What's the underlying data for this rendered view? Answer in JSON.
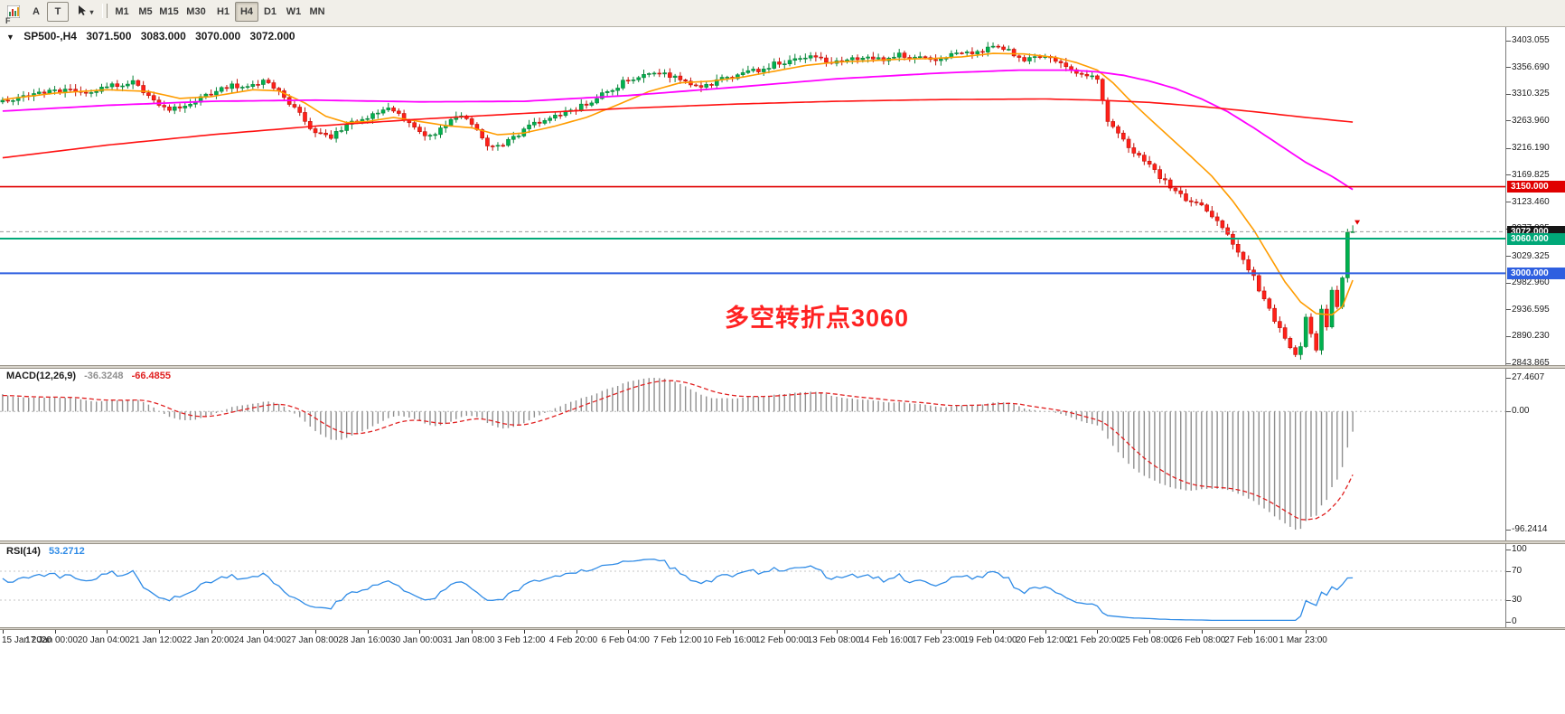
{
  "toolbar": {
    "menu_partial_label": "F",
    "text_tool_label": "A",
    "type_tool_label": "T",
    "dropdown_glyph": "▾",
    "timeframes": [
      "M1",
      "M5",
      "M15",
      "M30",
      "H1",
      "H4",
      "D1",
      "W1",
      "MN"
    ],
    "active_timeframe": "H4"
  },
  "main_chart": {
    "collapse_icon": "▼",
    "title": "SP500-,H4",
    "open": "3071.500",
    "high": "3083.000",
    "low": "3070.000",
    "close": "3072.000",
    "annotation": {
      "text": "多空转折点3060",
      "color": "#ff2222"
    },
    "price_badges": [
      {
        "text": "3150.000",
        "price": 3150,
        "bg": "#e00000"
      },
      {
        "text": "3072.000",
        "price": 3072,
        "bg": "#161616"
      },
      {
        "text": "3060.000",
        "price": 3060,
        "bg": "#00a878"
      },
      {
        "text": "3000.000",
        "price": 3000,
        "bg": "#2e5fe0"
      }
    ],
    "y_ticks": [
      "3403.055",
      "3356.690",
      "3310.325",
      "3263.960",
      "3216.190",
      "3169.825",
      "3123.460",
      "3077.095",
      "3029.325",
      "2982.960",
      "2936.595",
      "2890.230",
      "2843.865"
    ]
  },
  "macd_panel": {
    "label": "MACD(12,26,9)",
    "value_main": "-36.3248",
    "value_signal": "-66.4855",
    "y_ticks": [
      "27.4607",
      "0.00",
      "-96.2414"
    ]
  },
  "rsi_panel": {
    "label": "RSI(14)",
    "value": "53.2712",
    "y_ticks": [
      "100",
      "70",
      "30",
      "0"
    ],
    "levels": [
      70,
      30
    ]
  },
  "time_axis": [
    "15 Jan 2020",
    "17 Jan 00:00",
    "20 Jan 04:00",
    "21 Jan 12:00",
    "22 Jan 20:00",
    "24 Jan 04:00",
    "27 Jan 08:00",
    "28 Jan 16:00",
    "30 Jan 00:00",
    "31 Jan 08:00",
    "3 Feb 12:00",
    "4 Feb 20:00",
    "6 Feb 04:00",
    "7 Feb 12:00",
    "10 Feb 16:00",
    "12 Feb 00:00",
    "13 Feb 08:00",
    "14 Feb 16:00",
    "17 Feb 23:00",
    "19 Feb 04:00",
    "20 Feb 12:00",
    "21 Feb 20:00",
    "25 Feb 08:00",
    "26 Feb 08:00",
    "27 Feb 16:00",
    "1 Mar 23:00"
  ],
  "chart_data": [
    {
      "type": "candlestick",
      "symbol": "SP500-",
      "timeframe": "H4",
      "bars": 260,
      "up_color": "#00b14f",
      "up_border": "#0a8238",
      "down_color": "#ff2019",
      "down_border": "#c01109",
      "last_candle": {
        "open": 3071.5,
        "high": 3083.0,
        "low": 3070.0,
        "close": 3072.0
      },
      "close_waypoints": [
        [
          0,
          3296
        ],
        [
          5,
          3306
        ],
        [
          10,
          3318
        ],
        [
          15,
          3314
        ],
        [
          20,
          3322
        ],
        [
          25,
          3332
        ],
        [
          28,
          3310
        ],
        [
          31,
          3288
        ],
        [
          34,
          3284
        ],
        [
          38,
          3305
        ],
        [
          41,
          3316
        ],
        [
          44,
          3324
        ],
        [
          48,
          3328
        ],
        [
          50,
          3333
        ],
        [
          53,
          3312
        ],
        [
          56,
          3285
        ],
        [
          60,
          3243
        ],
        [
          63,
          3237
        ],
        [
          66,
          3255
        ],
        [
          70,
          3272
        ],
        [
          74,
          3283
        ],
        [
          78,
          3262
        ],
        [
          81,
          3240
        ],
        [
          83,
          3237
        ],
        [
          86,
          3270
        ],
        [
          88,
          3277
        ],
        [
          90,
          3258
        ],
        [
          93,
          3222
        ],
        [
          95,
          3218
        ],
        [
          98,
          3235
        ],
        [
          100,
          3249
        ],
        [
          104,
          3266
        ],
        [
          108,
          3280
        ],
        [
          112,
          3292
        ],
        [
          116,
          3314
        ],
        [
          120,
          3336
        ],
        [
          124,
          3348
        ],
        [
          127,
          3343
        ],
        [
          130,
          3338
        ],
        [
          133,
          3324
        ],
        [
          136,
          3330
        ],
        [
          140,
          3341
        ],
        [
          144,
          3350
        ],
        [
          148,
          3362
        ],
        [
          152,
          3370
        ],
        [
          155,
          3376
        ],
        [
          158,
          3368
        ],
        [
          161,
          3364
        ],
        [
          164,
          3374
        ],
        [
          168,
          3370
        ],
        [
          172,
          3378
        ],
        [
          176,
          3372
        ],
        [
          180,
          3373
        ],
        [
          184,
          3381
        ],
        [
          188,
          3387
        ],
        [
          190,
          3391
        ],
        [
          193,
          3385
        ],
        [
          196,
          3371
        ],
        [
          199,
          3377
        ],
        [
          202,
          3368
        ],
        [
          205,
          3352
        ],
        [
          208,
          3342
        ],
        [
          210,
          3337
        ],
        [
          212,
          3262
        ],
        [
          214,
          3240
        ],
        [
          217,
          3208
        ],
        [
          220,
          3192
        ],
        [
          222,
          3168
        ],
        [
          224,
          3150
        ],
        [
          227,
          3130
        ],
        [
          230,
          3121
        ],
        [
          232,
          3100
        ],
        [
          234,
          3078
        ],
        [
          236,
          3048
        ],
        [
          238,
          3020
        ],
        [
          240,
          2992
        ],
        [
          242,
          2955
        ],
        [
          244,
          2918
        ],
        [
          246,
          2888
        ],
        [
          248,
          2862
        ],
        [
          249,
          2875
        ],
        [
          250,
          2920
        ],
        [
          251,
          2895
        ],
        [
          252,
          2870
        ],
        [
          253,
          2940
        ],
        [
          254,
          2905
        ],
        [
          255,
          2975
        ],
        [
          256,
          2942
        ],
        [
          257,
          2992
        ],
        [
          258,
          3071
        ],
        [
          259,
          3072
        ]
      ],
      "moving_averages": [
        {
          "name": "MA fast",
          "color": "#ff9c00",
          "width": 1.6,
          "waypoints": [
            [
              0,
              3301
            ],
            [
              10,
              3312
            ],
            [
              20,
              3318
            ],
            [
              28,
              3315
            ],
            [
              34,
              3303
            ],
            [
              40,
              3306
            ],
            [
              48,
              3318
            ],
            [
              53,
              3316
            ],
            [
              58,
              3295
            ],
            [
              62,
              3272
            ],
            [
              66,
              3261
            ],
            [
              70,
              3263
            ],
            [
              75,
              3270
            ],
            [
              80,
              3263
            ],
            [
              85,
              3256
            ],
            [
              90,
              3252
            ],
            [
              95,
              3240
            ],
            [
              100,
              3243
            ],
            [
              106,
              3255
            ],
            [
              112,
              3270
            ],
            [
              118,
              3292
            ],
            [
              124,
              3315
            ],
            [
              130,
              3330
            ],
            [
              136,
              3333
            ],
            [
              142,
              3340
            ],
            [
              148,
              3350
            ],
            [
              154,
              3360
            ],
            [
              160,
              3366
            ],
            [
              166,
              3368
            ],
            [
              172,
              3371
            ],
            [
              178,
              3372
            ],
            [
              184,
              3375
            ],
            [
              190,
              3381
            ],
            [
              196,
              3380
            ],
            [
              202,
              3374
            ],
            [
              206,
              3365
            ],
            [
              210,
              3352
            ],
            [
              213,
              3330
            ],
            [
              216,
              3302
            ],
            [
              220,
              3268
            ],
            [
              224,
              3235
            ],
            [
              228,
              3202
            ],
            [
              232,
              3168
            ],
            [
              236,
              3125
            ],
            [
              240,
              3075
            ],
            [
              243,
              3030
            ],
            [
              246,
              2985
            ],
            [
              249,
              2950
            ],
            [
              252,
              2930
            ],
            [
              255,
              2928
            ],
            [
              257,
              2942
            ],
            [
              259,
              2988
            ]
          ]
        },
        {
          "name": "MA mid",
          "color": "#ff00ff",
          "width": 1.8,
          "waypoints": [
            [
              0,
              3281
            ],
            [
              20,
              3291
            ],
            [
              40,
              3298
            ],
            [
              60,
              3300
            ],
            [
              80,
              3297
            ],
            [
              100,
              3298
            ],
            [
              120,
              3308
            ],
            [
              140,
              3322
            ],
            [
              160,
              3337
            ],
            [
              180,
              3347
            ],
            [
              195,
              3352
            ],
            [
              205,
              3352
            ],
            [
              210,
              3349
            ],
            [
              215,
              3343
            ],
            [
              220,
              3333
            ],
            [
              225,
              3320
            ],
            [
              230,
              3302
            ],
            [
              235,
              3280
            ],
            [
              240,
              3252
            ],
            [
              245,
              3222
            ],
            [
              250,
              3192
            ],
            [
              255,
              3168
            ],
            [
              259,
              3145
            ]
          ]
        },
        {
          "name": "MA slow",
          "color": "#ff1111",
          "width": 1.6,
          "waypoints": [
            [
              0,
              3200
            ],
            [
              20,
              3222
            ],
            [
              40,
              3240
            ],
            [
              60,
              3255
            ],
            [
              80,
              3267
            ],
            [
              100,
              3277
            ],
            [
              120,
              3286
            ],
            [
              140,
              3293
            ],
            [
              160,
              3298
            ],
            [
              180,
              3301
            ],
            [
              200,
              3302
            ],
            [
              210,
              3300
            ],
            [
              220,
              3296
            ],
            [
              230,
              3289
            ],
            [
              240,
              3280
            ],
            [
              250,
              3270
            ],
            [
              259,
              3262
            ]
          ]
        }
      ],
      "hlines": [
        {
          "price": 3150,
          "color": "#e00000",
          "width": 1.6,
          "style": "solid"
        },
        {
          "price": 3072,
          "color": "#9a9a9a",
          "width": 1,
          "style": "dashed"
        },
        {
          "price": 3060,
          "color": "#00a878",
          "width": 2,
          "style": "solid"
        },
        {
          "price": 3000,
          "color": "#2e5fe0",
          "width": 2,
          "style": "solid"
        }
      ],
      "last_tick_arrow": {
        "direction": "down",
        "color": "#e00000",
        "price": 3092
      }
    },
    {
      "type": "macd",
      "params": {
        "fast": 12,
        "slow": 26,
        "signal": 9
      },
      "histogram_color": "#8f8f8f",
      "signal_color": "#e02020",
      "axis_max": 27.4607,
      "axis_min": -96.2414,
      "current_main": -36.3248,
      "current_signal": -66.4855
    },
    {
      "type": "rsi",
      "period": 14,
      "line_color": "#2f8be6",
      "levels": [
        70,
        30
      ],
      "axis": [
        100,
        70,
        30,
        0
      ],
      "current": 53.2712
    }
  ]
}
